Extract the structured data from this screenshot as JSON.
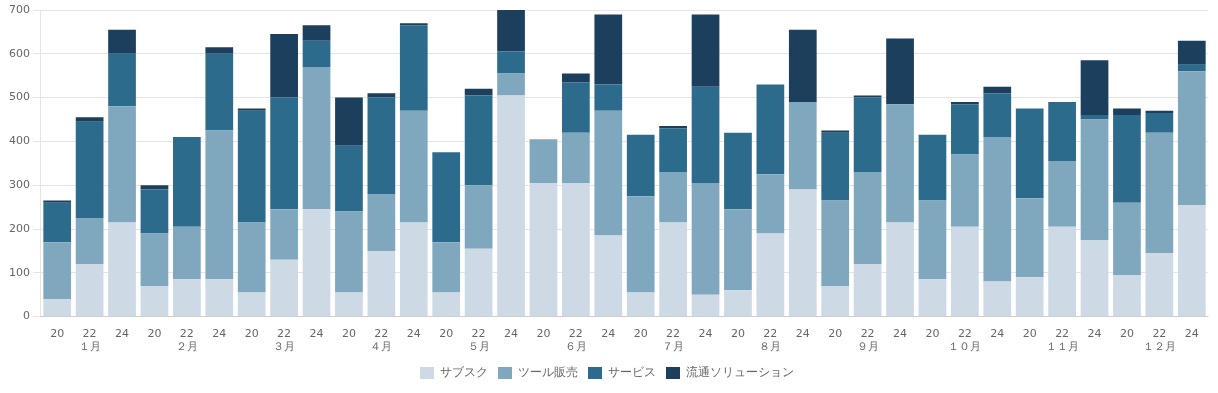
{
  "chart_data": {
    "type": "bar",
    "stacked": true,
    "grid": true,
    "legend": "bottom",
    "categories": [
      "20",
      [
        "22",
        "１月"
      ],
      "24",
      "20",
      [
        "22",
        "２月"
      ],
      "24",
      "20",
      [
        "22",
        "３月"
      ],
      "24",
      "20",
      [
        "22",
        "４月"
      ],
      "24",
      "20",
      [
        "22",
        "５月"
      ],
      "24",
      "20",
      [
        "22",
        "６月"
      ],
      "24",
      "20",
      [
        "22",
        "７月"
      ],
      "24",
      "20",
      [
        "22",
        "８月"
      ],
      "24",
      "20",
      [
        "22",
        "９月"
      ],
      "24",
      "20",
      [
        "22",
        "１０月"
      ],
      "24",
      "20",
      [
        "22",
        "１１月"
      ],
      "24",
      "20",
      [
        "22",
        "１２月"
      ],
      "24"
    ],
    "series": [
      {
        "name": "サブスク",
        "color": "#cdd9e5",
        "values": [
          40,
          120,
          215,
          70,
          85,
          85,
          55,
          130,
          245,
          55,
          150,
          215,
          55,
          155,
          505,
          305,
          305,
          185,
          55,
          215,
          50,
          60,
          190,
          290,
          70,
          120,
          215,
          85,
          205,
          80,
          90,
          205,
          175,
          95,
          145,
          255
        ]
      },
      {
        "name": "ツール販売",
        "color": "#7fa8bf",
        "values": [
          130,
          105,
          265,
          120,
          120,
          340,
          160,
          115,
          325,
          185,
          130,
          255,
          115,
          145,
          50,
          100,
          115,
          285,
          220,
          115,
          255,
          185,
          135,
          200,
          195,
          210,
          270,
          180,
          165,
          330,
          180,
          150,
          275,
          165,
          275,
          305
        ]
      },
      {
        "name": "サービス",
        "color": "#2d6b8c",
        "values": [
          90,
          220,
          120,
          100,
          205,
          175,
          255,
          255,
          60,
          150,
          220,
          195,
          205,
          205,
          50,
          0,
          115,
          60,
          140,
          100,
          220,
          175,
          205,
          0,
          155,
          170,
          0,
          150,
          115,
          100,
          205,
          135,
          10,
          200,
          45,
          15
        ]
      },
      {
        "name": "流通ソリューション",
        "color": "#1b3f5c",
        "values": [
          5,
          10,
          55,
          10,
          0,
          15,
          5,
          145,
          35,
          110,
          10,
          5,
          0,
          15,
          95,
          0,
          20,
          160,
          0,
          5,
          165,
          0,
          0,
          165,
          5,
          5,
          150,
          0,
          5,
          15,
          0,
          0,
          125,
          15,
          5,
          55
        ]
      }
    ],
    "ylim": [
      0,
      700
    ],
    "yticks": [
      0,
      100,
      200,
      300,
      400,
      500,
      600,
      700
    ]
  }
}
